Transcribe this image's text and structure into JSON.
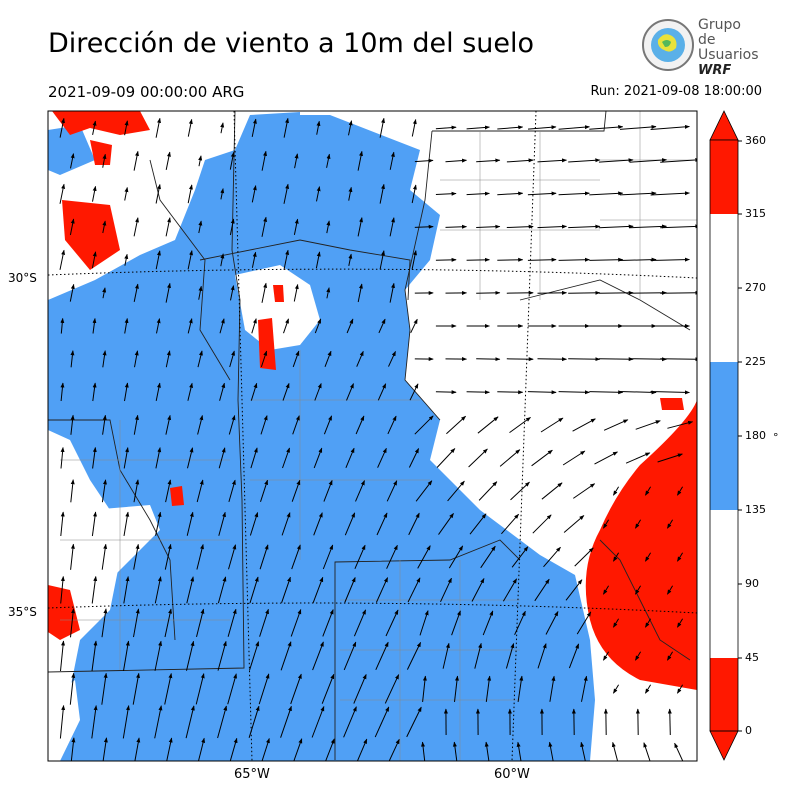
{
  "header": {
    "title": "Dirección de viento a 10m del suelo",
    "valid_time": "2021-09-09 00:00:00 ARG",
    "run": "Run: 2021-09-08 18:00:00"
  },
  "logo": {
    "line1": "Grupo de",
    "line2": "Usuarios",
    "line3": "WRF"
  },
  "map": {
    "lat_labels": [
      "30°S",
      "35°S"
    ],
    "lon_labels": [
      "65°W",
      "60°W"
    ]
  },
  "colorbar": {
    "ticks": [
      "360",
      "315",
      "270",
      "225",
      "180",
      "135",
      "90",
      "45",
      "0"
    ],
    "unit": "°",
    "colors": {
      "north": "#ff1800",
      "neutral": "#ffffff",
      "south": "#50a0f5"
    },
    "bins": [
      {
        "from": 0,
        "to": 45,
        "color": "#ff1800"
      },
      {
        "from": 45,
        "to": 135,
        "color": "#ffffff"
      },
      {
        "from": 135,
        "to": 225,
        "color": "#50a0f5"
      },
      {
        "from": 225,
        "to": 315,
        "color": "#ffffff"
      },
      {
        "from": 315,
        "to": 360,
        "color": "#ff1800"
      }
    ]
  }
}
